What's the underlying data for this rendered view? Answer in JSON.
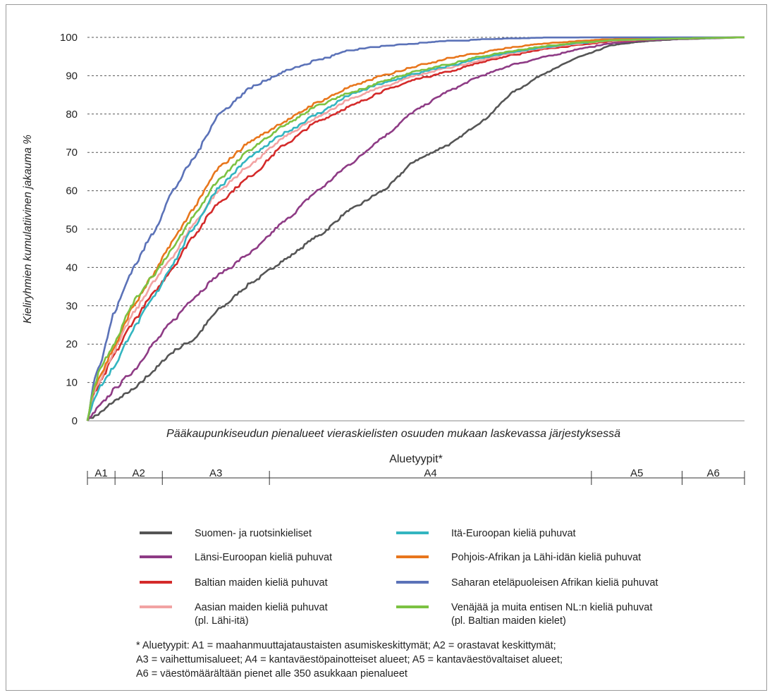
{
  "chart_data": {
    "type": "line",
    "ylabel": "Kieliryhmien kumulatiivinen jakauma %",
    "xlabel": "Pääkaupunkiseudun pienalueet vieraskielisten osuuden mukaan laskevassa järjestyksessä",
    "ylim": [
      0,
      100
    ],
    "yticks": [
      0,
      10,
      20,
      30,
      40,
      50,
      60,
      70,
      80,
      90,
      100
    ],
    "grid": "horizontal dashed",
    "x_unit": "share of small areas (0–1)",
    "series": [
      {
        "name": "Suomen- ja ruotsinkieliset",
        "color": "#555555",
        "points": [
          [
            0,
            0
          ],
          [
            0.02,
            2
          ],
          [
            0.04,
            5
          ],
          [
            0.07,
            8
          ],
          [
            0.1,
            13
          ],
          [
            0.13,
            18
          ],
          [
            0.16,
            21
          ],
          [
            0.2,
            29
          ],
          [
            0.25,
            36
          ],
          [
            0.3,
            42
          ],
          [
            0.35,
            48
          ],
          [
            0.4,
            55
          ],
          [
            0.45,
            60
          ],
          [
            0.5,
            68
          ],
          [
            0.55,
            72
          ],
          [
            0.6,
            78
          ],
          [
            0.65,
            86
          ],
          [
            0.7,
            91
          ],
          [
            0.75,
            95
          ],
          [
            0.8,
            98
          ],
          [
            0.85,
            99
          ],
          [
            0.9,
            99.5
          ],
          [
            1,
            100
          ]
        ]
      },
      {
        "name": "Länsi-Euroopan kieliä puhuvat",
        "color": "#8e3b85",
        "points": [
          [
            0,
            0
          ],
          [
            0.02,
            4
          ],
          [
            0.04,
            8
          ],
          [
            0.07,
            13
          ],
          [
            0.1,
            20
          ],
          [
            0.13,
            26
          ],
          [
            0.16,
            32
          ],
          [
            0.2,
            38
          ],
          [
            0.25,
            44
          ],
          [
            0.3,
            52
          ],
          [
            0.35,
            60
          ],
          [
            0.4,
            67
          ],
          [
            0.45,
            74
          ],
          [
            0.5,
            81
          ],
          [
            0.55,
            86
          ],
          [
            0.6,
            90
          ],
          [
            0.65,
            93
          ],
          [
            0.7,
            95
          ],
          [
            0.75,
            97
          ],
          [
            0.8,
            98.5
          ],
          [
            0.85,
            99.2
          ],
          [
            0.9,
            99.6
          ],
          [
            1,
            100
          ]
        ]
      },
      {
        "name": "Baltian maiden kieliä puhuvat",
        "color": "#d42a2a",
        "points": [
          [
            0,
            0
          ],
          [
            0.01,
            7
          ],
          [
            0.02,
            10
          ],
          [
            0.04,
            17
          ],
          [
            0.07,
            26
          ],
          [
            0.1,
            33
          ],
          [
            0.13,
            40
          ],
          [
            0.16,
            48
          ],
          [
            0.2,
            57
          ],
          [
            0.25,
            64
          ],
          [
            0.3,
            72
          ],
          [
            0.35,
            78
          ],
          [
            0.4,
            82
          ],
          [
            0.45,
            86
          ],
          [
            0.5,
            89
          ],
          [
            0.55,
            91
          ],
          [
            0.6,
            93.5
          ],
          [
            0.65,
            95.5
          ],
          [
            0.7,
            97
          ],
          [
            0.75,
            98
          ],
          [
            0.8,
            99
          ],
          [
            0.9,
            99.7
          ],
          [
            1,
            100
          ]
        ]
      },
      {
        "name": "Aasian maiden kieliä puhuvat (pl. Lähi-itä)",
        "color": "#f2a3a3",
        "points": [
          [
            0,
            0
          ],
          [
            0.01,
            8
          ],
          [
            0.02,
            11
          ],
          [
            0.04,
            18
          ],
          [
            0.07,
            28
          ],
          [
            0.1,
            36
          ],
          [
            0.13,
            43
          ],
          [
            0.16,
            51
          ],
          [
            0.2,
            60
          ],
          [
            0.25,
            67
          ],
          [
            0.3,
            74
          ],
          [
            0.35,
            79
          ],
          [
            0.4,
            84
          ],
          [
            0.45,
            87
          ],
          [
            0.5,
            90
          ],
          [
            0.55,
            92
          ],
          [
            0.6,
            94
          ],
          [
            0.65,
            96
          ],
          [
            0.7,
            97.3
          ],
          [
            0.75,
            98.4
          ],
          [
            0.8,
            99.1
          ],
          [
            0.9,
            99.7
          ],
          [
            1,
            100
          ]
        ]
      },
      {
        "name": "Itä-Euroopan kieliä puhuvat",
        "color": "#33b5c0",
        "points": [
          [
            0,
            0
          ],
          [
            0.01,
            6
          ],
          [
            0.02,
            9
          ],
          [
            0.04,
            14
          ],
          [
            0.07,
            24
          ],
          [
            0.1,
            32
          ],
          [
            0.13,
            41
          ],
          [
            0.16,
            50
          ],
          [
            0.2,
            61
          ],
          [
            0.25,
            69
          ],
          [
            0.3,
            75
          ],
          [
            0.35,
            80
          ],
          [
            0.4,
            85
          ],
          [
            0.45,
            88
          ],
          [
            0.5,
            90.5
          ],
          [
            0.55,
            92.5
          ],
          [
            0.6,
            94.5
          ],
          [
            0.65,
            96.2
          ],
          [
            0.7,
            97.5
          ],
          [
            0.75,
            98.5
          ],
          [
            0.8,
            99.2
          ],
          [
            0.9,
            99.7
          ],
          [
            1,
            100
          ]
        ]
      },
      {
        "name": "Pohjois-Afrikan ja Lähi-idän kieliä puhuvat",
        "color": "#e8761c",
        "points": [
          [
            0,
            0
          ],
          [
            0.01,
            9
          ],
          [
            0.02,
            12
          ],
          [
            0.04,
            19
          ],
          [
            0.07,
            30
          ],
          [
            0.1,
            38
          ],
          [
            0.13,
            47
          ],
          [
            0.16,
            55
          ],
          [
            0.2,
            66
          ],
          [
            0.25,
            73
          ],
          [
            0.3,
            78
          ],
          [
            0.35,
            83
          ],
          [
            0.4,
            87
          ],
          [
            0.45,
            90
          ],
          [
            0.5,
            92.5
          ],
          [
            0.55,
            94.5
          ],
          [
            0.6,
            96
          ],
          [
            0.65,
            97.5
          ],
          [
            0.7,
            98.4
          ],
          [
            0.75,
            99
          ],
          [
            0.8,
            99.5
          ],
          [
            0.9,
            99.8
          ],
          [
            1,
            100
          ]
        ]
      },
      {
        "name": "Saharan eteläpuoleisen Afrikan kieliä puhuvat",
        "color": "#5b72b8",
        "points": [
          [
            0,
            0
          ],
          [
            0.01,
            11
          ],
          [
            0.02,
            15
          ],
          [
            0.04,
            28
          ],
          [
            0.07,
            40
          ],
          [
            0.1,
            49
          ],
          [
            0.13,
            60
          ],
          [
            0.16,
            68
          ],
          [
            0.2,
            80
          ],
          [
            0.25,
            87
          ],
          [
            0.3,
            91
          ],
          [
            0.35,
            94
          ],
          [
            0.4,
            96.5
          ],
          [
            0.45,
            97.5
          ],
          [
            0.5,
            98.3
          ],
          [
            0.55,
            98.9
          ],
          [
            0.6,
            99.3
          ],
          [
            0.65,
            99.6
          ],
          [
            0.7,
            99.8
          ],
          [
            0.8,
            99.9
          ],
          [
            1,
            100
          ]
        ]
      },
      {
        "name": "Venäjää ja muita entisen NL:n kieliä puhuvat (pl. Baltian maiden kielet)",
        "color": "#7cc242",
        "points": [
          [
            0,
            0
          ],
          [
            0.01,
            9
          ],
          [
            0.02,
            14
          ],
          [
            0.04,
            20
          ],
          [
            0.07,
            31
          ],
          [
            0.1,
            38
          ],
          [
            0.13,
            45
          ],
          [
            0.16,
            53
          ],
          [
            0.2,
            63
          ],
          [
            0.25,
            71
          ],
          [
            0.3,
            77
          ],
          [
            0.35,
            82
          ],
          [
            0.4,
            85.5
          ],
          [
            0.45,
            88.5
          ],
          [
            0.5,
            91
          ],
          [
            0.55,
            93
          ],
          [
            0.6,
            95
          ],
          [
            0.65,
            96.5
          ],
          [
            0.7,
            97.7
          ],
          [
            0.75,
            98.6
          ],
          [
            0.8,
            99.2
          ],
          [
            0.9,
            99.7
          ],
          [
            1,
            100
          ]
        ]
      }
    ]
  },
  "area_types": {
    "title": "Aluetyypit*",
    "items": [
      {
        "label": "A1",
        "from": 0,
        "to": 0.042
      },
      {
        "label": "A2",
        "from": 0.042,
        "to": 0.114
      },
      {
        "label": "A3",
        "from": 0.114,
        "to": 0.277
      },
      {
        "label": "A4",
        "from": 0.277,
        "to": 0.767
      },
      {
        "label": "A5",
        "from": 0.767,
        "to": 0.905
      },
      {
        "label": "A6",
        "from": 0.905,
        "to": 1
      }
    ]
  },
  "legend": {
    "items": [
      {
        "lines": [
          "Suomen- ja ruotsinkieliset"
        ],
        "color": "#555555"
      },
      {
        "lines": [
          "Itä-Euroopan kieliä puhuvat"
        ],
        "color": "#33b5c0"
      },
      {
        "lines": [
          "Länsi-Euroopan kieliä puhuvat"
        ],
        "color": "#8e3b85"
      },
      {
        "lines": [
          "Pohjois-Afrikan ja Lähi-idän kieliä puhuvat"
        ],
        "color": "#e8761c"
      },
      {
        "lines": [
          "Baltian maiden kieliä puhuvat"
        ],
        "color": "#d42a2a"
      },
      {
        "lines": [
          "Saharan eteläpuoleisen Afrikan kieliä puhuvat"
        ],
        "color": "#5b72b8"
      },
      {
        "lines": [
          "Aasian maiden kieliä puhuvat",
          "(pl. Lähi-itä)"
        ],
        "color": "#f2a3a3"
      },
      {
        "lines": [
          "Venäjää ja muita entisen NL:n kieliä puhuvat",
          "(pl. Baltian maiden kielet)"
        ],
        "color": "#7cc242"
      }
    ]
  },
  "footnote": [
    "* Aluetyypit: A1 = maahanmuuttajataustaisten asumiskeskittymät; A2 = orastavat keskittymät;",
    "A3 = vaihettumisalueet; A4 = kantaväestöpainotteiset alueet; A5 = kantaväestövaltaiset alueet;",
    "A6 = väestömäärältään pienet alle 350 asukkaan pienalueet"
  ]
}
